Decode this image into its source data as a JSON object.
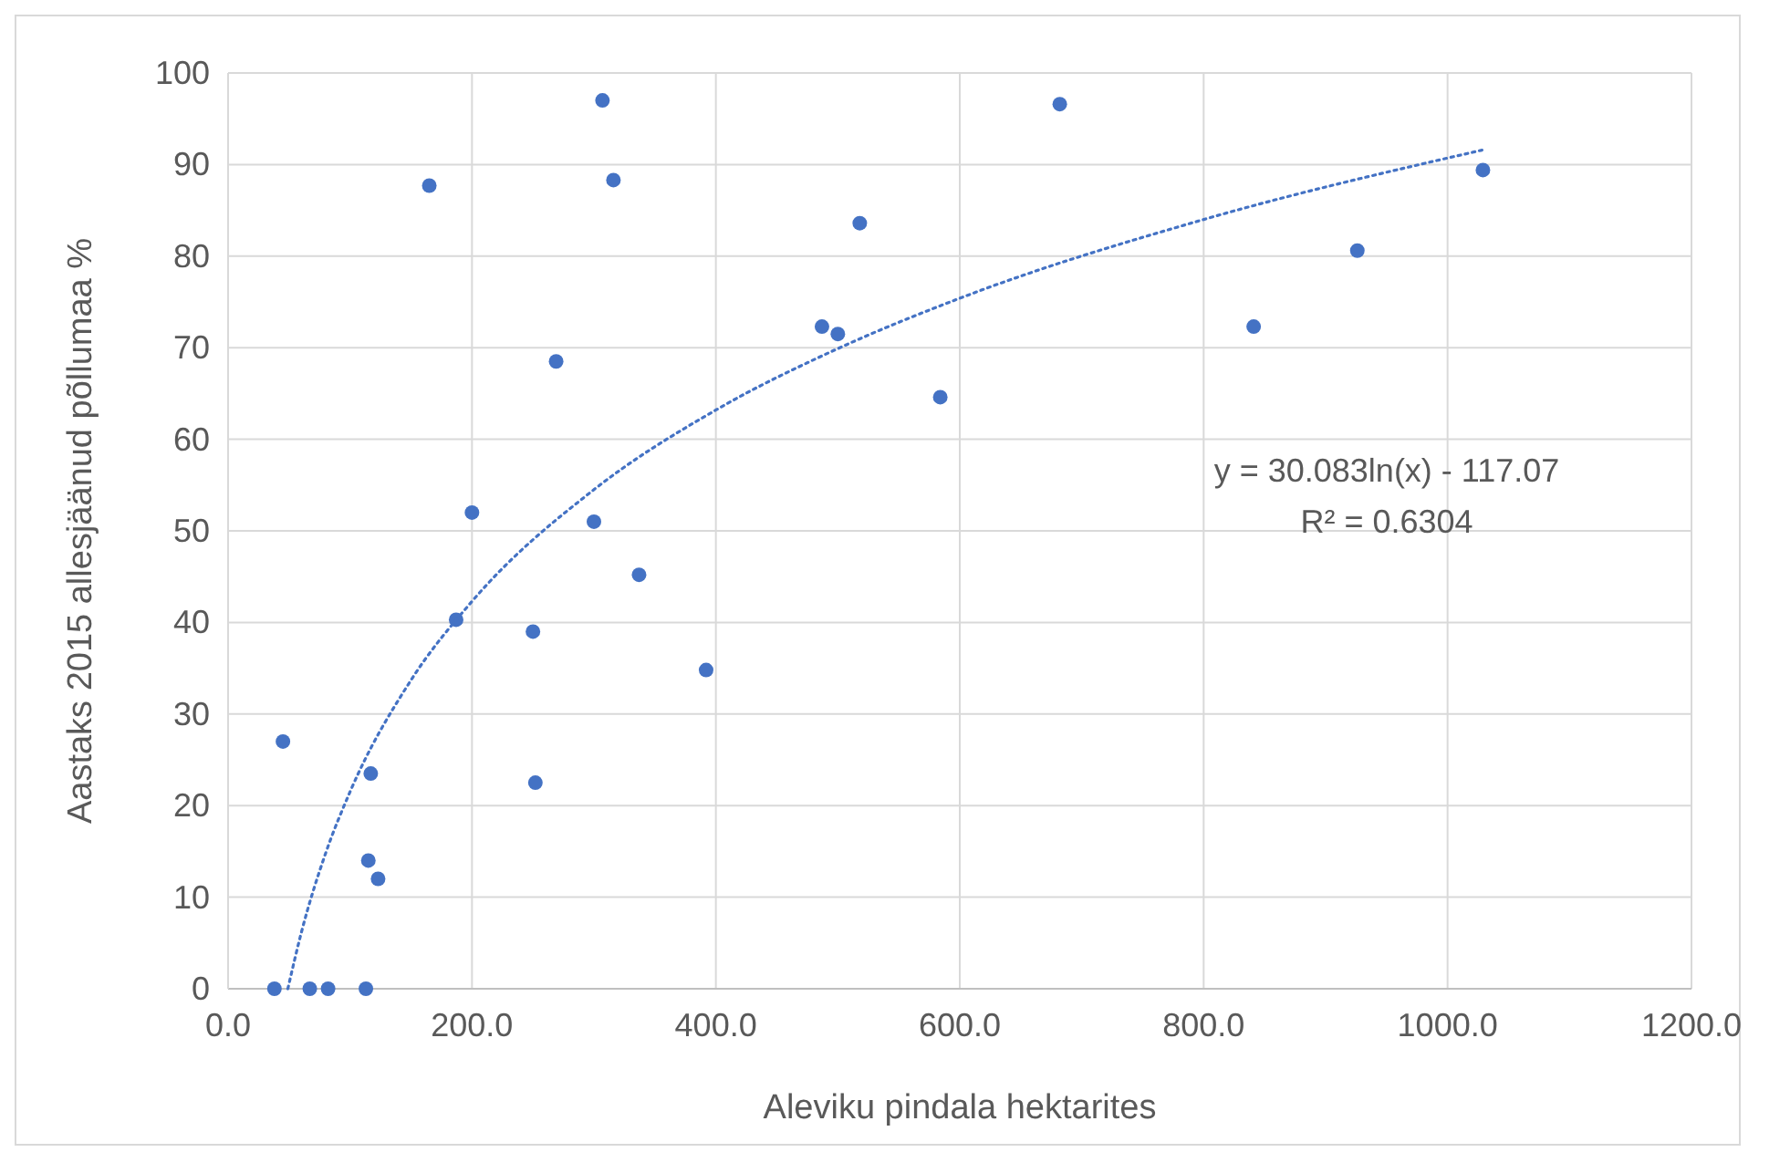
{
  "chart_data": {
    "type": "scatter",
    "xlabel": "Aleviku pindala hektarites",
    "ylabel": "Aastaks 2015 allesjäänud põllumaa %",
    "xlim": [
      0,
      1200
    ],
    "xticks": [
      {
        "value": 0,
        "label": "0.0"
      },
      {
        "value": 200,
        "label": "200.0"
      },
      {
        "value": 400,
        "label": "400.0"
      },
      {
        "value": 600,
        "label": "600.0"
      },
      {
        "value": 800,
        "label": "800.0"
      },
      {
        "value": 1000,
        "label": "1000.0"
      },
      {
        "value": 1200,
        "label": "1200.0"
      }
    ],
    "ylim": [
      0,
      100
    ],
    "yticks": [
      0,
      10,
      20,
      30,
      40,
      50,
      60,
      70,
      80,
      90,
      100
    ],
    "grid": true,
    "series": [
      {
        "color": "#4472c4",
        "marker": "circle",
        "x": [
          38,
          67,
          82,
          113,
          45,
          117,
          115,
          123,
          165,
          187,
          200,
          250,
          252,
          269,
          300,
          307,
          316,
          337,
          392,
          487,
          500,
          518,
          584,
          682,
          841,
          926,
          1029
        ],
        "values": [
          0,
          0,
          0,
          0,
          27,
          23.5,
          14,
          12,
          87.7,
          40.3,
          52,
          39,
          22.5,
          68.5,
          51,
          97,
          88.3,
          45.2,
          34.8,
          72.3,
          71.5,
          83.6,
          64.6,
          96.6,
          72.3,
          80.6,
          89.4
        ]
      },
      {
        "type": "line",
        "color": "#4472c4",
        "marker": "none",
        "line_style": "dotted",
        "x": [
          49,
          60,
          80,
          100,
          150,
          200,
          300,
          400,
          500,
          600,
          800,
          1029
        ],
        "values": [
          0,
          6.1,
          14.8,
          21.5,
          33.7,
          42.3,
          54.5,
          63.2,
          69.9,
          75.4,
          84,
          91.6
        ]
      }
    ],
    "annotations": [
      "y = 30.083ln(x) - 117.07",
      "R² = 0.6304"
    ]
  }
}
